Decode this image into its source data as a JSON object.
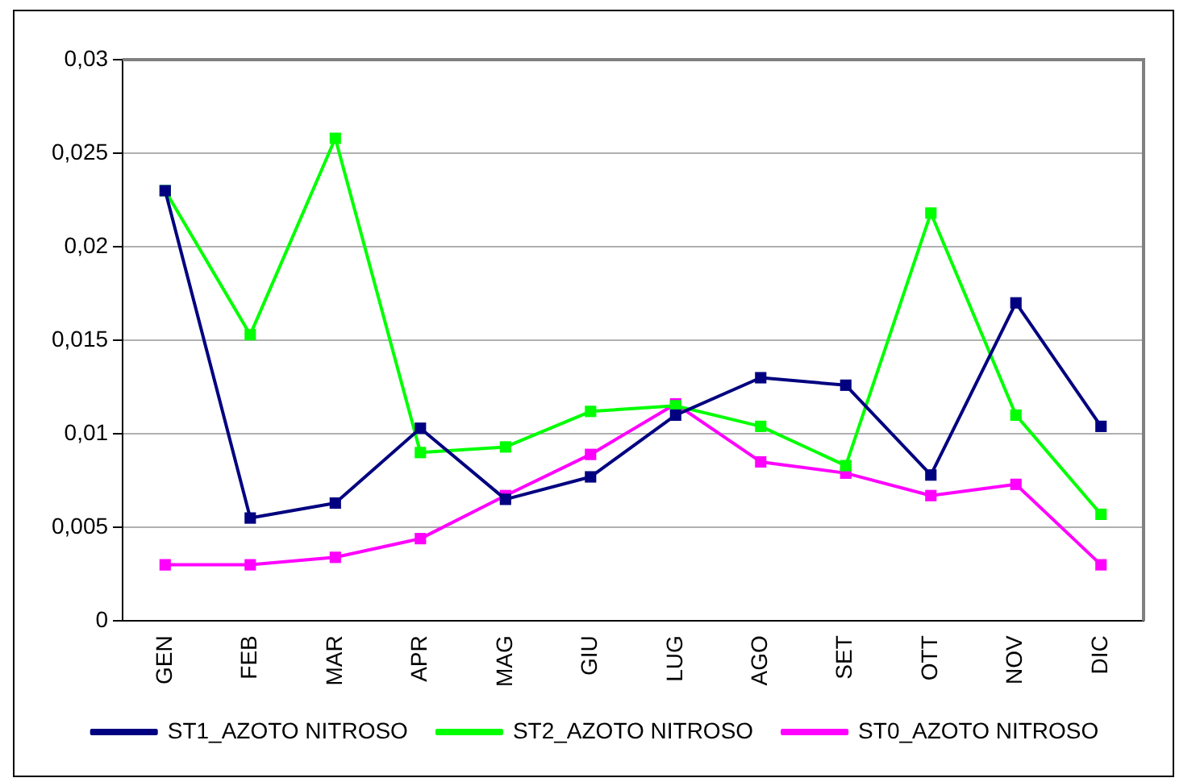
{
  "chart_data": {
    "type": "line",
    "categories": [
      "GEN",
      "FEB",
      "MAR",
      "APR",
      "MAG",
      "GIU",
      "LUG",
      "AGO",
      "SET",
      "OTT",
      "NOV",
      "DIC"
    ],
    "series": [
      {
        "name": "ST1_AZOTO NITROSO",
        "color": "#000080",
        "values": [
          0.023,
          0.0055,
          0.0063,
          0.0103,
          0.0065,
          0.0077,
          0.011,
          0.013,
          0.0126,
          0.0078,
          0.017,
          0.0104
        ]
      },
      {
        "name": "ST2_AZOTO NITROSO",
        "color": "#00ff00",
        "values": [
          0.023,
          0.0153,
          0.0258,
          0.009,
          0.0093,
          0.0112,
          0.0115,
          0.0104,
          0.0083,
          0.0218,
          0.011,
          0.0057
        ]
      },
      {
        "name": "ST0_AZOTO NITROSO",
        "color": "#ff00ff",
        "values": [
          0.003,
          0.003,
          0.0034,
          0.0044,
          0.0067,
          0.0089,
          0.0116,
          0.0085,
          0.0079,
          0.0067,
          0.0073,
          0.003
        ]
      }
    ],
    "ylim": [
      0,
      0.03
    ],
    "yticks": [
      {
        "value": 0,
        "label": "0"
      },
      {
        "value": 0.005,
        "label": "0,005"
      },
      {
        "value": 0.01,
        "label": "0,01"
      },
      {
        "value": 0.015,
        "label": "0,015"
      },
      {
        "value": 0.02,
        "label": "0,02"
      },
      {
        "value": 0.025,
        "label": "0,025"
      },
      {
        "value": 0.03,
        "label": "0,03"
      }
    ],
    "grid": "y",
    "legend": "bottom",
    "marker": "square",
    "line_style": "solid"
  }
}
